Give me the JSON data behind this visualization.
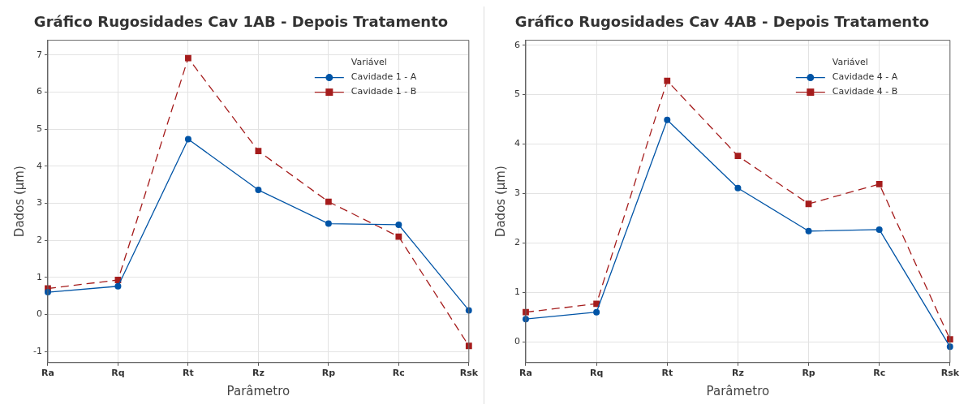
{
  "chart_data": [
    {
      "type": "line",
      "title": "Gráfico Rugosidades Cav 1AB - Depois Tratamento",
      "xlabel": "Parâmetro",
      "ylabel": "Dados (µm)",
      "legend_title": "Variável",
      "categories": [
        "Ra",
        "Rq",
        "Rt",
        "Rz",
        "Rp",
        "Rc",
        "Rsk"
      ],
      "ylim": [
        -1.3,
        7.4
      ],
      "yticks": [
        -1,
        0,
        1,
        2,
        3,
        4,
        5,
        6,
        7
      ],
      "grid": true,
      "legend": "top right",
      "series": [
        {
          "name": "Cavidade 1 - A",
          "color": "#0054a6",
          "marker": "circle",
          "line_style": "solid",
          "values": [
            0.6,
            0.76,
            4.73,
            3.36,
            2.45,
            2.42,
            0.11
          ]
        },
        {
          "name": "Cavidade 1 - B",
          "color": "#a51c1c",
          "marker": "square",
          "line_style": "dashed",
          "values": [
            0.7,
            0.93,
            6.92,
            4.41,
            3.04,
            2.1,
            -0.85
          ]
        }
      ]
    },
    {
      "type": "line",
      "title": "Gráfico Rugosidades Cav 4AB - Depois Tratamento",
      "xlabel": "Parâmetro",
      "ylabel": "Dados (µm)",
      "legend_title": "Variável",
      "categories": [
        "Ra",
        "Rq",
        "Rt",
        "Rz",
        "Rp",
        "Rc",
        "Rsk"
      ],
      "ylim": [
        -0.42,
        6.1
      ],
      "yticks": [
        0,
        1,
        2,
        3,
        4,
        5,
        6
      ],
      "grid": true,
      "legend": "top right",
      "series": [
        {
          "name": "Cavidade 4 - A",
          "color": "#0054a6",
          "marker": "circle",
          "line_style": "solid",
          "values": [
            0.46,
            0.6,
            4.49,
            3.11,
            2.24,
            2.27,
            -0.1
          ]
        },
        {
          "name": "Cavidade 4 - B",
          "color": "#a51c1c",
          "marker": "square",
          "line_style": "dashed",
          "values": [
            0.6,
            0.77,
            5.28,
            3.76,
            2.79,
            3.19,
            0.05
          ]
        }
      ]
    }
  ]
}
